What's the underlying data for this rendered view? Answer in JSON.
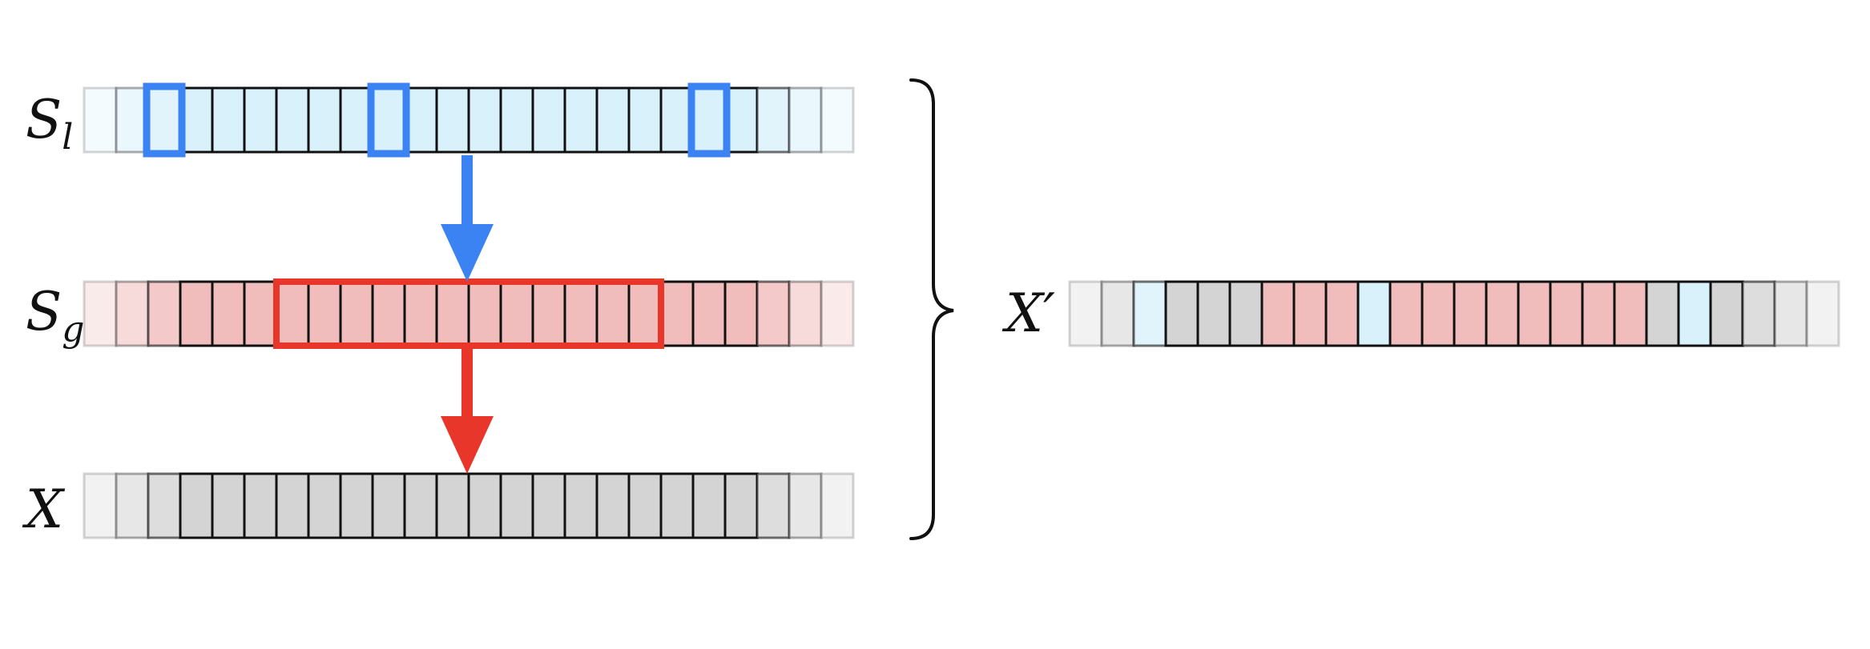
{
  "rows": [
    {
      "id": "S_l",
      "label_main": "S",
      "label_sub": "l",
      "fill": "#d9f1fb",
      "cells": 24
    },
    {
      "id": "S_g",
      "label_main": "S",
      "label_sub": "g",
      "fill": "#f0bcbc",
      "cells": 24
    },
    {
      "id": "X",
      "label_main": "X",
      "label_sub": "",
      "fill": "#d4d4d4",
      "cells": 24
    }
  ],
  "result_row": {
    "label_main": "X′",
    "cells": [
      "gray",
      "gray",
      "blue",
      "gray",
      "gray",
      "gray",
      "red",
      "red",
      "red",
      "blue",
      "red",
      "red",
      "red",
      "red",
      "red",
      "red",
      "red",
      "red",
      "gray",
      "blue",
      "gray",
      "gray",
      "gray",
      "gray"
    ]
  },
  "highlights": {
    "local_selection_cells": [
      2,
      9,
      19
    ],
    "global_window_start": 6,
    "global_window_end": 17
  },
  "colors": {
    "local_accent": "#3b82f2",
    "global_accent": "#e8362b",
    "blue": "#d9f1fb",
    "red": "#f0bcbc",
    "gray": "#d4d4d4",
    "cell_border": "#111111"
  }
}
